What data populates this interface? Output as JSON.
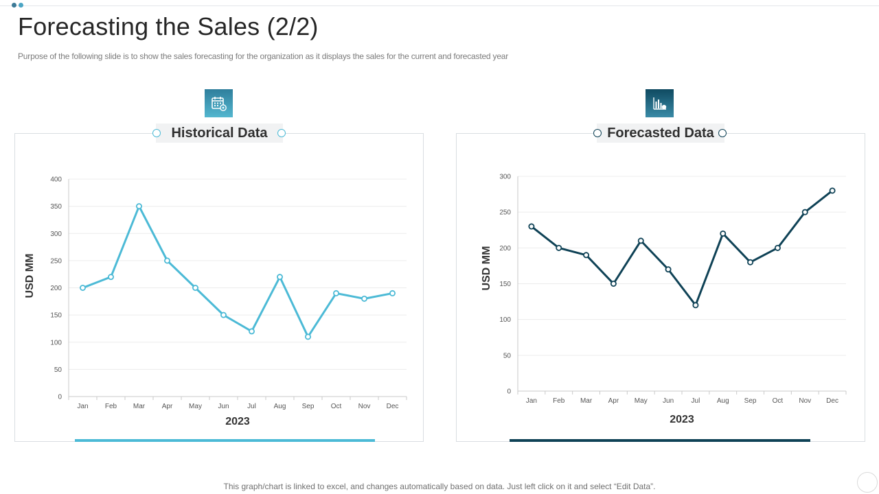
{
  "slide": {
    "title": "Forecasting the Sales (2/2)",
    "subtitle": "Purpose of the following slide is to show the sales forecasting for the organization as it displays the sales for the current and forecasted year",
    "footer": "This graph/chart is linked to excel,  and changes automatically based on data. Just left click on it and select “Edit Data”."
  },
  "panels": {
    "left": {
      "title": "Historical Data",
      "icon": "calendar-gear-icon"
    },
    "right": {
      "title": "Forecasted Data",
      "icon": "bar-chart-icon"
    }
  },
  "colors": {
    "historical": "#4cbad6",
    "forecast": "#0f4256",
    "grid": "#ececec",
    "axis_text": "#555555"
  },
  "chart_data": [
    {
      "type": "line",
      "title": "Historical Data",
      "categories": [
        "Jan",
        "Feb",
        "Mar",
        "Apr",
        "May",
        "Jun",
        "Jul",
        "Aug",
        "Sep",
        "Oct",
        "Nov",
        "Dec"
      ],
      "values": [
        200,
        220,
        350,
        250,
        200,
        150,
        120,
        220,
        110,
        190,
        180,
        190
      ],
      "xlabel": "2023",
      "ylabel": "USD MM",
      "ylim": [
        0,
        400
      ],
      "yticks": [
        0,
        50,
        100,
        150,
        200,
        250,
        300,
        350,
        400
      ],
      "grid": true
    },
    {
      "type": "line",
      "title": "Forecasted Data",
      "categories": [
        "Jan",
        "Feb",
        "Mar",
        "Apr",
        "May",
        "Jun",
        "Jul",
        "Aug",
        "Sep",
        "Oct",
        "Nov",
        "Dec"
      ],
      "values": [
        230,
        200,
        190,
        150,
        210,
        170,
        120,
        220,
        180,
        200,
        250,
        280
      ],
      "xlabel": "2023",
      "ylabel": "USD MM",
      "ylim": [
        0,
        300
      ],
      "yticks": [
        0,
        50,
        100,
        150,
        200,
        250,
        300
      ],
      "grid": true
    }
  ]
}
